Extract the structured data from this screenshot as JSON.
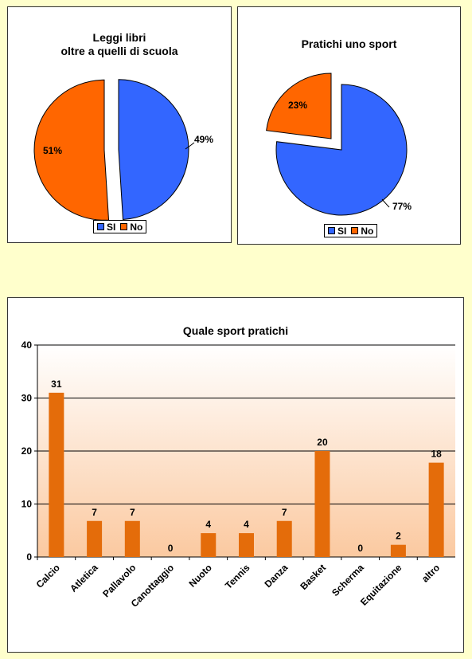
{
  "charts": {
    "books": {
      "title_line1": "Leggi libri",
      "title_line2": "oltre a quelli di scuola",
      "slices": [
        {
          "label": "SI",
          "value": 49,
          "text": "49%",
          "color": "#3366ff"
        },
        {
          "label": "No",
          "value": 51,
          "text": "51%",
          "color": "#ff6600"
        }
      ]
    },
    "sport": {
      "title": "Pratichi uno sport",
      "slices": [
        {
          "label": "SI",
          "value": 77,
          "text": "77%",
          "color": "#3366ff"
        },
        {
          "label": "No",
          "value": 23,
          "text": "23%",
          "color": "#ff6600"
        }
      ]
    },
    "which_sport": {
      "title": "Quale sport pratichi"
    }
  },
  "chart_data": [
    {
      "type": "pie",
      "title": "Leggi libri oltre a quelli di scuola",
      "categories": [
        "SI",
        "No"
      ],
      "values": [
        49,
        51
      ],
      "legend": "bottom"
    },
    {
      "type": "pie",
      "title": "Pratichi uno sport",
      "categories": [
        "SI",
        "No"
      ],
      "values": [
        77,
        23
      ],
      "legend": "bottom"
    },
    {
      "type": "bar",
      "title": "Quale sport pratichi",
      "categories": [
        "Calcio",
        "Atletica",
        "Pallavolo",
        "Canottaggio",
        "Nuoto",
        "Tennis",
        "Danza",
        "Basket",
        "Scherma",
        "Equitazione",
        "altro"
      ],
      "values": [
        31,
        7,
        7,
        0,
        4,
        4,
        7,
        20,
        0,
        2,
        18
      ],
      "bar_heights": [
        31,
        6.8,
        6.8,
        0,
        4.5,
        4.5,
        6.8,
        20,
        0,
        2.3,
        17.8
      ],
      "ylim": [
        0,
        40
      ],
      "yticks": [
        0,
        10,
        20,
        30,
        40
      ],
      "grid": true,
      "bar_color": "#e46c0a"
    }
  ]
}
